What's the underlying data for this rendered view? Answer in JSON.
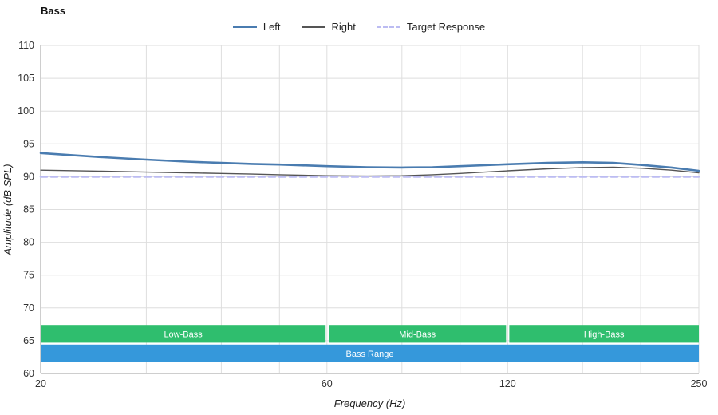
{
  "title": "Bass",
  "chart_data": {
    "type": "line",
    "title": "Bass",
    "xlabel": "Frequency (Hz)",
    "ylabel": "Amplitude (dB SPL)",
    "x_scale": "log",
    "xlim": [
      20,
      250
    ],
    "ylim": [
      60,
      110
    ],
    "x_ticks_labeled": [
      20,
      60,
      120,
      250
    ],
    "x_gridlines": [
      20,
      30,
      40,
      50,
      60,
      80,
      100,
      120,
      160,
      200,
      250
    ],
    "y_ticks": [
      60,
      65,
      70,
      75,
      80,
      85,
      90,
      95,
      100,
      105,
      110
    ],
    "grid": true,
    "legend_position": "top-center",
    "series": [
      {
        "name": "Left",
        "color": "#4a7cb0",
        "width": 2.6,
        "dash": null,
        "x": [
          20,
          25,
          30,
          35,
          40,
          45,
          50,
          60,
          70,
          80,
          90,
          100,
          110,
          120,
          140,
          160,
          180,
          200,
          225,
          250
        ],
        "y": [
          93.6,
          93.0,
          92.6,
          92.3,
          92.1,
          91.95,
          91.85,
          91.6,
          91.45,
          91.4,
          91.45,
          91.6,
          91.75,
          91.9,
          92.1,
          92.2,
          92.1,
          91.8,
          91.4,
          90.9
        ]
      },
      {
        "name": "Right",
        "color": "#555555",
        "width": 1.4,
        "dash": null,
        "x": [
          20,
          25,
          30,
          35,
          40,
          45,
          50,
          60,
          70,
          80,
          90,
          100,
          110,
          120,
          140,
          160,
          180,
          200,
          225,
          250
        ],
        "y": [
          91.0,
          90.85,
          90.7,
          90.6,
          90.5,
          90.4,
          90.3,
          90.15,
          90.1,
          90.15,
          90.3,
          90.5,
          90.7,
          90.9,
          91.2,
          91.4,
          91.45,
          91.3,
          91.0,
          90.6
        ]
      },
      {
        "name": "Target Response",
        "color": "#bcbcf2",
        "width": 2.6,
        "dash": "8 5",
        "x": [
          20,
          250
        ],
        "y": [
          90,
          90
        ]
      }
    ],
    "bands": [
      {
        "label": "Low-Bass",
        "x0": 20,
        "x1": 59.7,
        "y0": 64.7,
        "y1": 67.4,
        "color": "#2fbe6e"
      },
      {
        "label": "Mid-Bass",
        "x0": 60.4,
        "x1": 119.3,
        "y0": 64.7,
        "y1": 67.4,
        "color": "#2fbe6e"
      },
      {
        "label": "High-Bass",
        "x0": 120.8,
        "x1": 250,
        "y0": 64.7,
        "y1": 67.4,
        "color": "#2fbe6e"
      },
      {
        "label": "Bass Range",
        "x0": 20,
        "x1": 250,
        "y0": 61.7,
        "y1": 64.4,
        "color": "#3598db"
      }
    ],
    "colors": {
      "gridline": "#dedede",
      "axis": "#9e9e9e",
      "left_series": "#4a7cb0",
      "right_series": "#555555",
      "target_series": "#bcbcf2",
      "band_green": "#2fbe6e",
      "band_blue": "#3598db"
    }
  }
}
